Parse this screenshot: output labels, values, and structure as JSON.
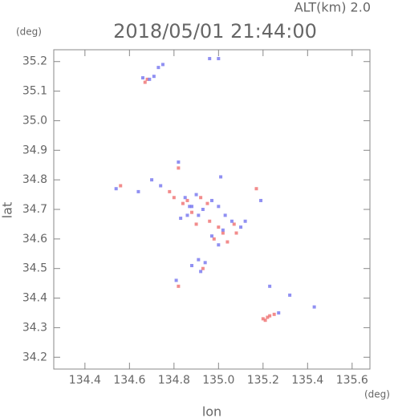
{
  "chart_data": {
    "type": "scatter",
    "title": "2018/05/01 21:44:00",
    "subtitle": "ALT(km) 2.0",
    "y_unit": "(deg)",
    "x_unit": "(deg)",
    "xlabel": "lon",
    "ylabel": "lat",
    "xlim": [
      134.26,
      135.68
    ],
    "ylim": [
      34.16,
      35.24
    ],
    "xticks": [
      134.4,
      134.6,
      134.8,
      {
        "value": 135.0,
        "label": "135.0"
      },
      135.2,
      135.4,
      135.6
    ],
    "yticks": [
      34.2,
      34.3,
      34.4,
      34.5,
      34.6,
      34.7,
      34.8,
      34.9,
      {
        "value": 35.0,
        "label": "35.0"
      },
      35.1,
      35.2
    ],
    "series": [
      {
        "color": "#f07878",
        "x": [
          134.67,
          134.68,
          134.56,
          134.82,
          134.78,
          134.8,
          134.84,
          134.86,
          134.92,
          134.95,
          134.88,
          134.96,
          135.0,
          135.02,
          134.98,
          135.04,
          135.07,
          135.17,
          134.82,
          134.93,
          135.2,
          135.22,
          135.23,
          135.25,
          135.21,
          134.9,
          135.08
        ],
        "y": [
          35.13,
          35.14,
          34.78,
          34.84,
          34.76,
          34.74,
          34.72,
          34.73,
          34.74,
          34.72,
          34.69,
          34.66,
          34.64,
          34.62,
          34.6,
          34.59,
          34.65,
          34.77,
          34.44,
          34.5,
          34.33,
          34.335,
          34.34,
          34.345,
          34.325,
          34.65,
          34.62
        ]
      },
      {
        "color": "#7c7cf0",
        "x": [
          134.66,
          134.69,
          134.71,
          134.73,
          134.75,
          135.0,
          134.96,
          134.54,
          134.64,
          134.7,
          134.74,
          134.82,
          134.85,
          134.88,
          134.9,
          134.93,
          134.91,
          134.97,
          135.0,
          135.03,
          135.06,
          135.1,
          135.12,
          135.02,
          134.97,
          135.0,
          134.87,
          134.86,
          135.01,
          135.19,
          134.91,
          134.94,
          134.88,
          134.92,
          134.81,
          135.23,
          135.32,
          135.43,
          135.27,
          134.83
        ],
        "y": [
          35.145,
          35.14,
          35.15,
          35.18,
          35.19,
          35.21,
          35.21,
          34.77,
          34.76,
          34.8,
          34.78,
          34.86,
          34.74,
          34.71,
          34.75,
          34.7,
          34.68,
          34.73,
          34.71,
          34.68,
          34.66,
          34.64,
          34.66,
          34.63,
          34.61,
          34.58,
          34.71,
          34.68,
          34.81,
          34.73,
          34.53,
          34.52,
          34.51,
          34.49,
          34.46,
          34.44,
          34.41,
          34.37,
          34.35,
          34.67
        ]
      }
    ]
  }
}
